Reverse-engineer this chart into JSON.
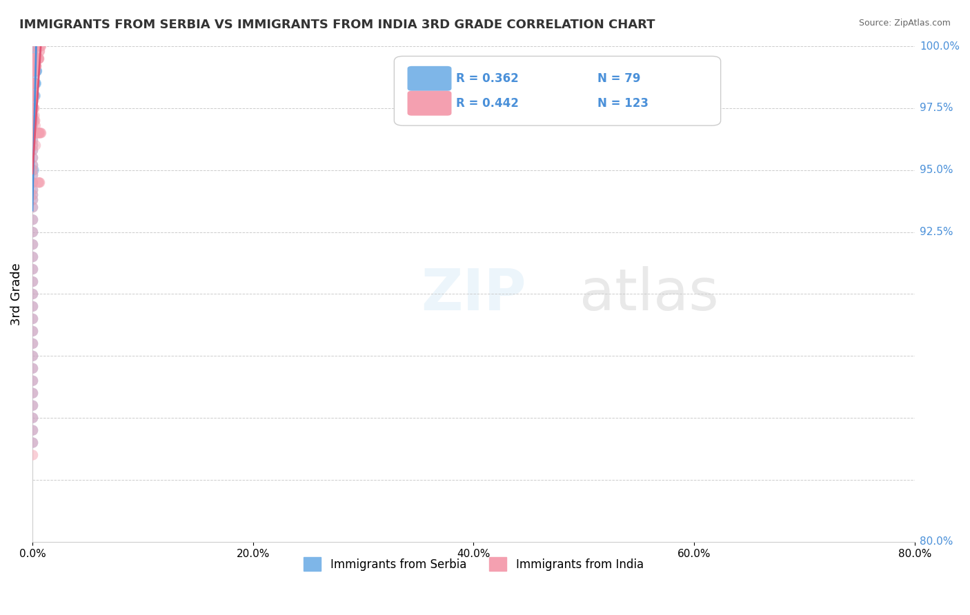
{
  "title": "IMMIGRANTS FROM SERBIA VS IMMIGRANTS FROM INDIA 3RD GRADE CORRELATION CHART",
  "source": "Source: ZipAtlas.com",
  "xlabel_bottom": "",
  "ylabel": "3rd Grade",
  "x_min": 0.0,
  "x_max": 80.0,
  "y_min": 80.0,
  "y_max": 100.0,
  "x_ticks": [
    0.0,
    20.0,
    40.0,
    60.0,
    80.0
  ],
  "x_tick_labels": [
    "0.0%",
    "20.0%",
    "40.0%",
    "60.0%",
    "80.0%"
  ],
  "y_ticks": [
    80.0,
    82.5,
    85.0,
    87.5,
    90.0,
    92.5,
    95.0,
    97.5,
    100.0
  ],
  "y_tick_labels": [
    "80.0%",
    "",
    "",
    "",
    "",
    "92.5%",
    "95.0%",
    "97.5%",
    "100.0%"
  ],
  "serbia_color": "#7eb6e8",
  "india_color": "#f4a0b0",
  "serbia_R": 0.362,
  "serbia_N": 79,
  "india_R": 0.442,
  "india_N": 123,
  "serbia_line_color": "#4a90d9",
  "india_line_color": "#e05575",
  "legend_serbia": "Immigrants from Serbia",
  "legend_india": "Immigrants from India",
  "watermark": "ZIPatlas",
  "serbia_x": [
    0.05,
    0.05,
    0.05,
    0.05,
    0.05,
    0.05,
    0.05,
    0.05,
    0.05,
    0.05,
    0.08,
    0.08,
    0.08,
    0.1,
    0.1,
    0.1,
    0.1,
    0.1,
    0.12,
    0.12,
    0.15,
    0.15,
    0.15,
    0.15,
    0.18,
    0.18,
    0.18,
    0.2,
    0.2,
    0.2,
    0.22,
    0.25,
    0.25,
    0.28,
    0.28,
    0.3,
    0.32,
    0.35,
    0.38,
    0.4,
    0.42,
    0.45,
    0.05,
    0.05,
    0.05,
    0.05,
    0.05,
    0.05,
    0.05,
    0.05,
    0.05,
    0.05,
    0.05,
    0.05,
    0.05,
    0.05,
    0.05,
    0.05,
    0.05,
    0.05,
    0.05,
    0.05,
    0.05,
    0.05,
    0.05,
    0.05,
    0.05,
    0.05,
    0.05,
    0.05,
    0.05,
    0.05,
    0.05,
    0.05,
    0.05,
    0.05,
    0.05,
    0.05,
    0.1,
    0.15
  ],
  "serbia_y": [
    100.0,
    99.8,
    99.5,
    99.2,
    99.0,
    98.8,
    98.5,
    98.2,
    98.0,
    97.8,
    99.5,
    99.0,
    98.5,
    99.8,
    99.5,
    99.0,
    98.5,
    98.0,
    99.5,
    99.0,
    99.5,
    99.0,
    98.5,
    98.0,
    99.0,
    98.5,
    98.0,
    99.0,
    98.5,
    98.0,
    98.5,
    99.0,
    98.5,
    98.5,
    98.0,
    98.5,
    99.0,
    98.5,
    99.0,
    99.0,
    99.0,
    99.5,
    97.5,
    97.2,
    97.0,
    96.8,
    96.5,
    96.2,
    96.0,
    95.8,
    95.5,
    95.2,
    95.0,
    94.8,
    94.5,
    94.2,
    94.0,
    93.8,
    93.5,
    93.0,
    92.5,
    92.0,
    91.5,
    91.0,
    90.5,
    90.0,
    89.5,
    89.0,
    88.5,
    88.0,
    87.5,
    87.0,
    86.5,
    86.0,
    85.5,
    85.0,
    84.5,
    84.0,
    97.0,
    95.0
  ],
  "india_x": [
    0.05,
    0.05,
    0.05,
    0.05,
    0.05,
    0.05,
    0.05,
    0.05,
    0.05,
    0.05,
    0.05,
    0.05,
    0.05,
    0.05,
    0.05,
    0.05,
    0.05,
    0.05,
    0.05,
    0.05,
    0.08,
    0.08,
    0.08,
    0.08,
    0.1,
    0.1,
    0.1,
    0.1,
    0.12,
    0.12,
    0.12,
    0.15,
    0.15,
    0.15,
    0.15,
    0.18,
    0.18,
    0.18,
    0.2,
    0.2,
    0.22,
    0.22,
    0.25,
    0.25,
    0.25,
    0.28,
    0.28,
    0.3,
    0.3,
    0.32,
    0.35,
    0.35,
    0.38,
    0.38,
    0.4,
    0.42,
    0.45,
    0.48,
    0.5,
    0.52,
    0.55,
    0.58,
    0.6,
    0.62,
    0.65,
    0.68,
    0.7,
    0.75,
    0.8,
    0.05,
    0.05,
    0.05,
    0.05,
    0.05,
    0.05,
    0.05,
    0.05,
    0.05,
    0.05,
    0.05,
    0.05,
    0.05,
    0.05,
    0.05,
    0.05,
    0.05,
    0.05,
    0.05,
    0.05,
    0.05,
    0.05,
    0.05,
    0.05,
    0.05,
    0.05,
    0.05,
    0.08,
    0.1,
    0.12,
    0.15,
    0.18,
    0.2,
    0.25,
    0.3,
    0.12,
    0.15,
    0.08,
    0.2,
    0.25,
    0.28,
    0.32,
    0.4,
    0.45,
    0.5,
    0.55,
    0.6,
    0.62,
    0.68,
    0.75,
    0.8,
    0.55,
    0.62,
    0.68
  ],
  "india_y": [
    100.0,
    99.8,
    99.5,
    99.2,
    99.0,
    98.8,
    98.5,
    98.2,
    98.0,
    97.8,
    97.5,
    97.2,
    97.0,
    96.8,
    96.5,
    96.2,
    96.0,
    95.8,
    95.5,
    95.2,
    99.5,
    99.0,
    98.5,
    98.0,
    99.5,
    99.2,
    99.0,
    98.5,
    99.5,
    99.0,
    98.5,
    99.5,
    99.2,
    99.0,
    98.5,
    99.5,
    99.2,
    99.0,
    99.5,
    99.2,
    99.5,
    99.2,
    99.5,
    99.2,
    99.0,
    99.5,
    99.2,
    99.5,
    99.2,
    99.5,
    99.5,
    99.2,
    99.5,
    99.2,
    99.5,
    99.5,
    99.5,
    99.5,
    99.5,
    99.5,
    99.5,
    99.5,
    99.5,
    99.5,
    99.8,
    99.8,
    100.0,
    100.0,
    100.0,
    95.0,
    94.8,
    94.5,
    94.2,
    94.0,
    93.8,
    93.5,
    93.0,
    92.5,
    92.0,
    91.5,
    91.0,
    90.5,
    90.0,
    89.5,
    89.0,
    88.5,
    88.0,
    87.5,
    87.0,
    86.5,
    86.0,
    85.5,
    85.0,
    84.5,
    84.0,
    83.5,
    98.5,
    98.5,
    98.0,
    98.0,
    97.5,
    97.0,
    96.5,
    96.0,
    97.8,
    97.5,
    98.2,
    97.2,
    97.0,
    96.8,
    96.5,
    96.5,
    96.5,
    96.5,
    96.5,
    96.5,
    96.5,
    96.5,
    96.5,
    96.5,
    94.5,
    94.5,
    94.5
  ]
}
